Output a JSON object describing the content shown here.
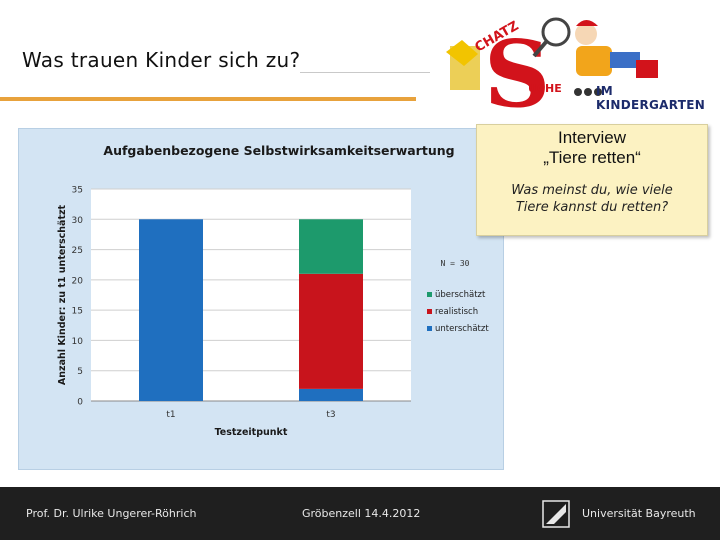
{
  "slide": {
    "title": "Was trauen Kinder sich zu?"
  },
  "logo": {
    "arc_text": "CHATZ",
    "letter": "S",
    "suffix": "UCHE",
    "tagline": "IM KINDERGARTEN"
  },
  "callout": {
    "heading_line1": "Interview",
    "heading_line2": "„Tiere retten“",
    "question_line1": "Was meinst du, wie viele",
    "question_line2": "Tiere kannst du retten?"
  },
  "footer": {
    "author": "Prof. Dr. Ulrike Ungerer-Röhrich",
    "event": "Gröbenzell 14.4.2012",
    "university": "Universität Bayreuth"
  },
  "colors": {
    "accent": "#e8a23c",
    "panel_bg": "#d3e4f3",
    "callout_bg": "#fcf2c2",
    "footer_bg": "#1f1f1f"
  },
  "chart_data": {
    "type": "bar",
    "stacked": true,
    "title": "Aufgabenbezogene Selbstwirksamkeitserwartung",
    "xlabel": "Testzeitpunkt",
    "ylabel": "Anzahl Kinder: zu t1 unterschätzt",
    "categories": [
      "t1",
      "t3"
    ],
    "ylim": [
      0,
      35
    ],
    "yticks": [
      0,
      5,
      10,
      15,
      20,
      25,
      30,
      35
    ],
    "grid": true,
    "annotation": "N = 30",
    "legend_position": "right",
    "series": [
      {
        "name": "unterschätzt",
        "color": "#1f6fbf",
        "values": [
          30,
          2
        ]
      },
      {
        "name": "realistisch",
        "color": "#c8141c",
        "values": [
          0,
          19
        ]
      },
      {
        "name": "überschätzt",
        "color": "#1d9a6c",
        "values": [
          0,
          9
        ]
      }
    ]
  }
}
